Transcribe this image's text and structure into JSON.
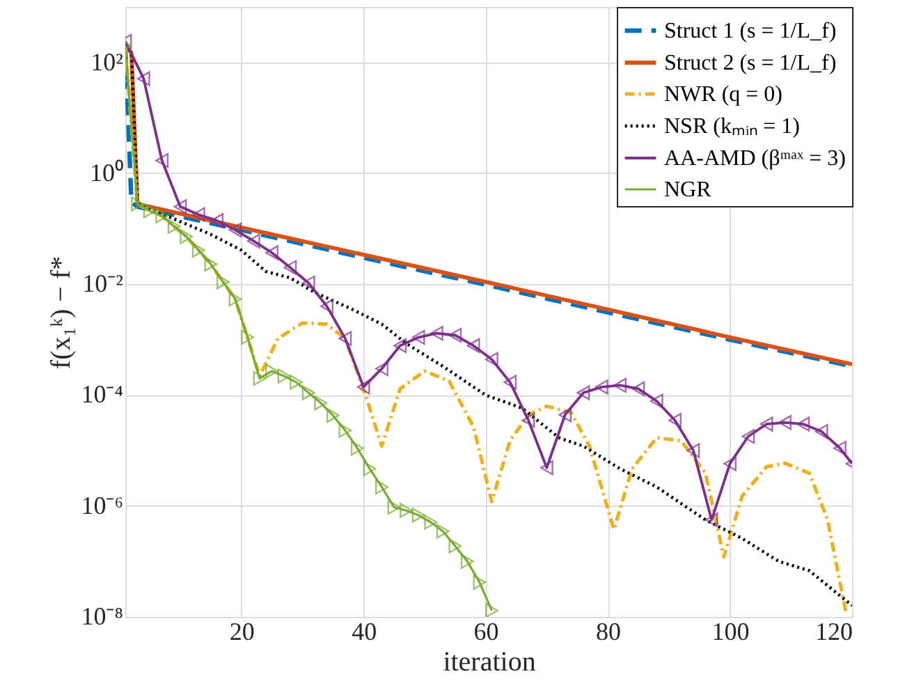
{
  "chart_data": {
    "type": "line",
    "xlabel": "iteration",
    "ylabel": "f(x₁ᵏ) − f*",
    "log": "y",
    "grid": true,
    "legend": "top right",
    "xlim": [
      1,
      120
    ],
    "xticks": [
      20,
      40,
      60,
      80,
      100,
      120
    ],
    "ylim": [
      1e-08,
      1000
    ],
    "yticks": [
      {
        "value": 1e-08,
        "label": "10⁻⁸"
      },
      {
        "value": 1e-06,
        "label": "10⁻⁶"
      },
      {
        "value": 0.0001,
        "label": "10⁻⁴"
      },
      {
        "value": 0.01,
        "label": "10⁻²"
      },
      {
        "value": 1,
        "label": "10⁰"
      },
      {
        "value": 100,
        "label": "10²"
      }
    ],
    "series": [
      {
        "name": "Struct 1 (s = 1/L_f)",
        "color": "#0072bd",
        "line_style": "dashed",
        "marker": "none",
        "x": [
          1,
          2,
          3,
          20,
          40,
          60,
          80,
          100,
          120
        ],
        "values": [
          200,
          0.3,
          0.25,
          0.095,
          0.03,
          0.0098,
          0.0031,
          0.001,
          0.00033
        ]
      },
      {
        "name": "Struct 2 (s = 1/L_f)",
        "color": "#d95319",
        "line_style": "solid",
        "marker": "none",
        "x": [
          1,
          2,
          3,
          20,
          40,
          60,
          80,
          100,
          120
        ],
        "values": [
          200,
          150,
          0.28,
          0.105,
          0.034,
          0.011,
          0.0035,
          0.0011,
          0.00036
        ]
      },
      {
        "name": "NWR (q = 0)",
        "color": "#edb120",
        "line_style": "dashdot",
        "marker": "none",
        "x": [
          1,
          3,
          5,
          7,
          9,
          11,
          13,
          15,
          17,
          19,
          21,
          23,
          26,
          30,
          34,
          37,
          40,
          43,
          46,
          50,
          54,
          58,
          61,
          64,
          67,
          70,
          74,
          77,
          81,
          84,
          88,
          92,
          96,
          99,
          102,
          106,
          109,
          113,
          116,
          119
        ],
        "values": [
          200,
          0.28,
          0.21,
          0.17,
          0.11,
          0.072,
          0.041,
          0.023,
          0.011,
          0.0054,
          0.0011,
          0.00022,
          0.00105,
          0.002,
          0.0019,
          0.00105,
          0.00013,
          1.2e-05,
          0.00013,
          0.00027,
          0.00018,
          2.7e-05,
          1.2e-06,
          1.5e-05,
          4.4e-05,
          6.3e-05,
          4.8e-05,
          1.2e-05,
          3.8e-07,
          4.7e-06,
          1.7e-05,
          1.5e-05,
          3.9e-06,
          1.2e-07,
          1.5e-06,
          5.1e-06,
          5.9e-06,
          3.9e-06,
          5.6e-07,
          1.2e-08
        ]
      },
      {
        "name": "NSR (kₘᵢₙ = 1)",
        "color": "#000000",
        "line_style": "dotted",
        "marker": "none",
        "x": [
          1,
          2,
          3,
          9,
          15,
          20,
          24,
          28,
          32,
          38,
          43,
          47,
          53,
          60,
          66,
          72,
          76,
          82,
          88,
          96,
          102,
          108,
          113,
          120
        ],
        "values": [
          200,
          150,
          0.28,
          0.15,
          0.079,
          0.041,
          0.017,
          0.013,
          0.0071,
          0.0036,
          0.0019,
          0.00085,
          0.00033,
          0.0001,
          5.8e-05,
          1.7e-05,
          1.2e-05,
          4.7e-06,
          2.2e-06,
          5.6e-07,
          2.6e-07,
          1e-07,
          6.8e-08,
          1.6e-08
        ]
      },
      {
        "name": "AA-AMD (βᵐᵃˣ = 3)",
        "color": "#7e2f8e",
        "line_style": "solid",
        "marker": "triangle-left",
        "x": [
          1,
          4,
          7,
          10,
          13,
          16,
          19,
          22,
          25,
          28,
          31,
          34,
          37,
          40,
          43,
          46,
          49,
          52,
          55,
          58,
          61,
          64,
          67,
          70,
          73,
          76,
          79,
          82,
          85,
          88,
          91,
          94,
          97,
          100,
          103,
          106,
          109,
          112,
          115,
          118,
          120
        ],
        "values": [
          240,
          51,
          1.7,
          0.25,
          0.18,
          0.14,
          0.095,
          0.06,
          0.037,
          0.02,
          0.0105,
          0.004,
          0.00105,
          0.00014,
          0.0003,
          0.00078,
          0.0011,
          0.0013,
          0.0012,
          0.00078,
          0.00044,
          0.00017,
          3.5e-05,
          4.9e-06,
          4.4e-05,
          0.00011,
          0.00014,
          0.00015,
          0.00013,
          7.8e-05,
          3.5e-05,
          1e-05,
          5.6e-07,
          5.8e-06,
          1.8e-05,
          3e-05,
          3.2e-05,
          3e-05,
          2.2e-05,
          1.1e-05,
          5.8e-06
        ]
      },
      {
        "name": "NGR",
        "color": "#77ac30",
        "line_style": "solid",
        "marker": "triangle-right",
        "x": [
          1,
          3,
          5,
          7,
          9,
          11,
          13,
          15,
          17,
          19,
          21,
          23,
          25,
          27,
          29,
          31,
          33,
          35,
          37,
          39,
          41,
          43,
          45,
          47,
          49,
          51,
          53,
          55,
          57,
          59,
          61
        ],
        "values": [
          200,
          0.28,
          0.21,
          0.17,
          0.11,
          0.072,
          0.041,
          0.023,
          0.011,
          0.0054,
          0.0011,
          0.0002,
          0.00027,
          0.00022,
          0.00017,
          0.00011,
          7.2e-05,
          4.3e-05,
          2.3e-05,
          1.1e-05,
          4.7e-06,
          2.2e-06,
          9.5e-07,
          8.3e-07,
          6.8e-07,
          5.1e-07,
          3.5e-07,
          1.9e-07,
          1e-07,
          4.2e-08,
          1.3e-08
        ]
      }
    ]
  }
}
